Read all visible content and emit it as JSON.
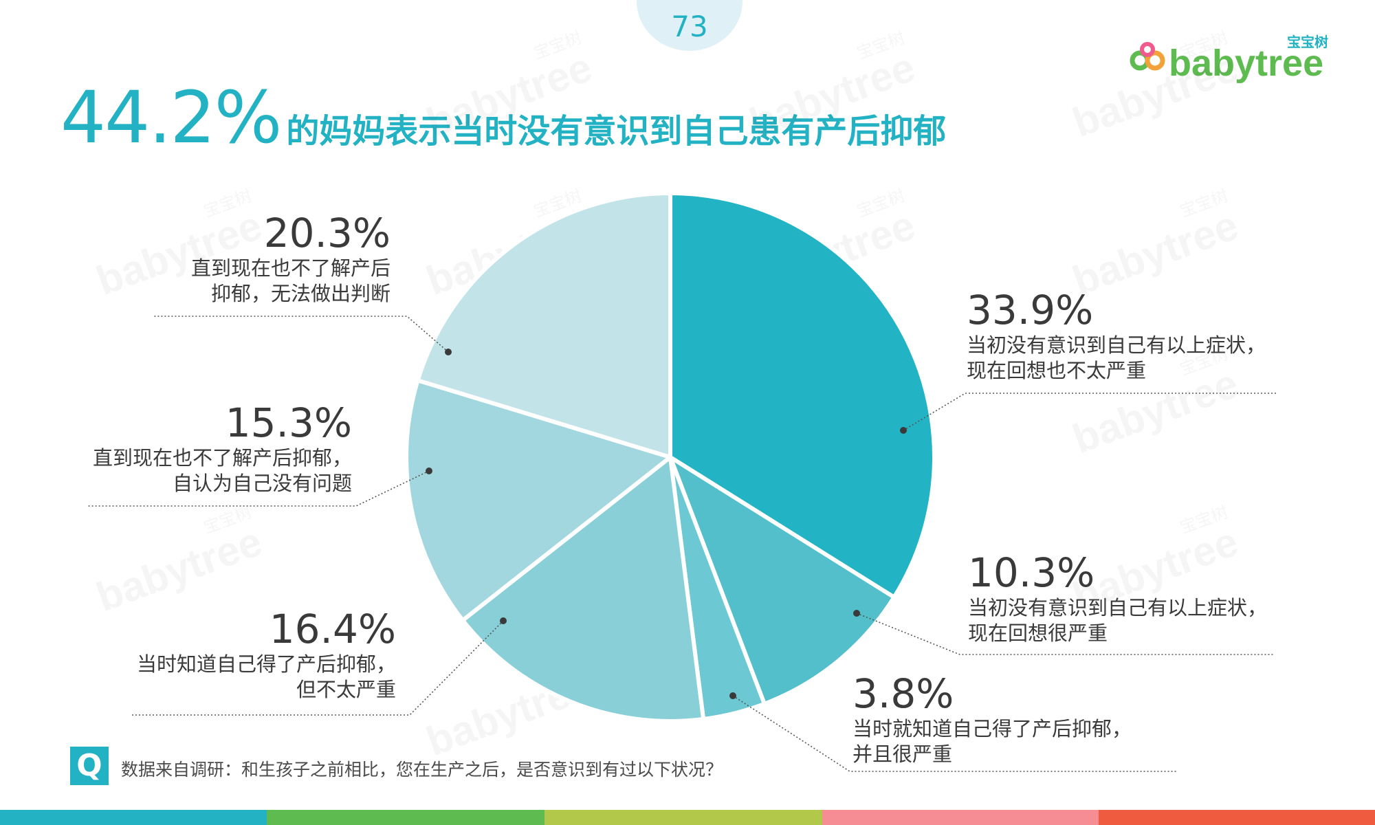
{
  "page_number": "73",
  "brand": {
    "cn_name": "宝宝树",
    "en_name": "babytree",
    "watermark_cn": "宝宝树",
    "watermark_en": "babytree"
  },
  "title": {
    "highlight": "44.2%",
    "rest": "的妈妈表示当时没有意识到自己患有产后抑郁"
  },
  "chart_data": {
    "type": "pie",
    "unit": "%",
    "slices": [
      {
        "label_lines": [
          "当初没有意识到自己有以上症状，",
          "现在回想也不太严重"
        ],
        "value": 33.9,
        "value_label": "33.9%",
        "color": "#22b4c5"
      },
      {
        "label_lines": [
          "当初没有意识到自己有以上症状，",
          "现在回想很严重"
        ],
        "value": 10.3,
        "value_label": "10.3%",
        "color": "#52bfcb"
      },
      {
        "label_lines": [
          "当时就知道自己得了产后抑郁，",
          "并且很严重"
        ],
        "value": 3.8,
        "value_label": "3.8%",
        "color": "#6cc8d2"
      },
      {
        "label_lines": [
          "当时知道自己得了产后抑郁，",
          "但不太严重"
        ],
        "value": 16.4,
        "value_label": "16.4%",
        "color": "#88cfd8"
      },
      {
        "label_lines": [
          "直到现在也不了解产后抑郁，",
          "自认为自己没有问题"
        ],
        "value": 15.3,
        "value_label": "15.3%",
        "color": "#a2d7e0"
      },
      {
        "label_lines": [
          "直到现在也不了解产后",
          "抑郁，无法做出判断"
        ],
        "value": 20.3,
        "value_label": "20.3%",
        "color": "#c2e4e9"
      }
    ]
  },
  "footer": {
    "q_badge": "Q",
    "source_text": "数据来自调研：和生孩子之前相比，您在生产之后，是否意识到有过以下状况？"
  },
  "colors": {
    "accent": "#22b2c3",
    "text": "#3a3a3a",
    "bottom_bar": [
      "#22b2c3",
      "#5dbb4f",
      "#b2c84a",
      "#f78d94",
      "#ef5b3f"
    ]
  }
}
